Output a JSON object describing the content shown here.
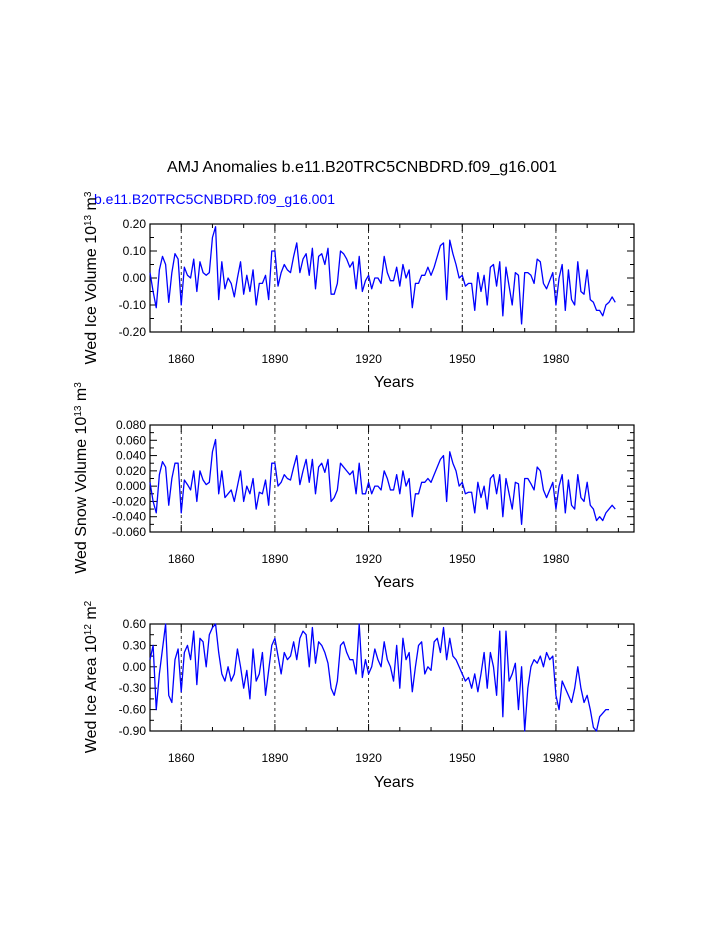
{
  "title": "AMJ Anomalies b.e11.B20TRC5CNBDRD.f09_g16.001",
  "subtitle": "b.e11.B20TRC5CNBDRD.f09_g16.001",
  "line_color": "#0000ff",
  "subtitle_color": "#0000ff",
  "chart_data": [
    {
      "type": "line",
      "xlabel": "Years",
      "ylabel": {
        "main": "Wed Ice Volume 10",
        "exp": "13",
        "unit": " m",
        "unit_exp": "3"
      },
      "xlim": [
        1850,
        2005
      ],
      "ylim": [
        -0.2,
        0.2
      ],
      "xticks": [
        1860,
        1890,
        1920,
        1950,
        1980
      ],
      "yticks": [
        -0.2,
        -0.1,
        0.0,
        0.1,
        0.2
      ],
      "yticklabels": [
        "-0.20",
        "-0.10",
        "0.00",
        "0.10",
        "0.20"
      ],
      "vlines": [
        1860,
        1890,
        1920,
        1950,
        1980
      ],
      "series": [
        {
          "name": "b.e11.B20TRC5CNBDRD.f09_g16.001",
          "x_start": 1850,
          "values": [
            0.02,
            -0.05,
            -0.11,
            0.03,
            0.08,
            0.05,
            -0.09,
            0.02,
            0.09,
            0.07,
            -0.1,
            0.04,
            0.01,
            0.0,
            0.07,
            -0.05,
            0.06,
            0.02,
            0.01,
            0.02,
            0.15,
            0.19,
            -0.08,
            0.06,
            -0.04,
            0.0,
            -0.02,
            -0.07,
            0.0,
            0.06,
            -0.06,
            0.01,
            -0.05,
            0.03,
            -0.1,
            -0.02,
            -0.02,
            0.01,
            -0.08,
            0.1,
            0.1,
            -0.03,
            0.02,
            0.05,
            0.03,
            0.02,
            0.08,
            0.13,
            0.02,
            0.07,
            0.09,
            0.01,
            0.11,
            -0.04,
            0.08,
            0.09,
            0.05,
            0.11,
            -0.06,
            -0.06,
            -0.02,
            0.1,
            0.09,
            0.07,
            0.04,
            0.06,
            -0.04,
            0.08,
            -0.05,
            -0.01,
            0.01,
            -0.04,
            0.0,
            0.0,
            -0.02,
            0.08,
            0.02,
            -0.01,
            -0.01,
            0.04,
            -0.03,
            0.05,
            0.0,
            0.03,
            -0.11,
            -0.02,
            -0.02,
            0.01,
            0.01,
            0.04,
            0.01,
            0.04,
            0.08,
            0.12,
            0.13,
            -0.08,
            0.14,
            0.09,
            0.05,
            0.0,
            0.01,
            -0.03,
            -0.02,
            -0.02,
            -0.12,
            0.02,
            -0.05,
            0.01,
            -0.1,
            0.04,
            0.05,
            -0.03,
            0.06,
            -0.14,
            0.04,
            -0.03,
            -0.1,
            0.02,
            0.01,
            -0.17,
            0.02,
            0.02,
            0.01,
            -0.02,
            0.07,
            0.06,
            -0.02,
            -0.04,
            -0.01,
            0.02,
            -0.1,
            0.0,
            0.05,
            -0.12,
            0.03,
            -0.08,
            -0.1,
            0.06,
            -0.05,
            -0.06,
            0.03,
            -0.08,
            -0.09,
            -0.12,
            -0.12,
            -0.14,
            -0.1,
            -0.09,
            -0.07,
            -0.09
          ]
        }
      ]
    },
    {
      "type": "line",
      "xlabel": "Years",
      "ylabel": {
        "main": "Wed Snow Volume 10",
        "exp": "13",
        "unit": " m",
        "unit_exp": "3"
      },
      "xlim": [
        1850,
        2005
      ],
      "ylim": [
        -0.06,
        0.08
      ],
      "xticks": [
        1860,
        1890,
        1920,
        1950,
        1980
      ],
      "yticks": [
        -0.06,
        -0.04,
        -0.02,
        0.0,
        0.02,
        0.04,
        0.06,
        0.08
      ],
      "yticklabels": [
        "-0.060",
        "-0.040",
        "-0.020",
        "0.000",
        "0.020",
        "0.040",
        "0.060",
        "0.080"
      ],
      "vlines": [
        1860,
        1890,
        1920,
        1950,
        1980
      ],
      "series": [
        {
          "name": "b.e11.B20TRC5CNBDRD.f09_g16.001",
          "x_start": 1850,
          "values": [
            0.005,
            -0.02,
            -0.035,
            0.015,
            0.032,
            0.025,
            -0.025,
            0.01,
            0.03,
            0.03,
            -0.035,
            0.008,
            0.002,
            -0.005,
            0.02,
            -0.02,
            0.02,
            0.008,
            0.002,
            0.005,
            0.045,
            0.061,
            -0.01,
            0.02,
            -0.015,
            -0.01,
            -0.005,
            -0.02,
            0.0,
            0.02,
            -0.02,
            0.0,
            -0.01,
            0.01,
            -0.03,
            -0.008,
            -0.01,
            0.008,
            -0.025,
            0.03,
            0.03,
            0.0,
            0.005,
            0.015,
            0.01,
            0.008,
            0.025,
            0.04,
            0.002,
            0.02,
            0.035,
            0.005,
            0.035,
            -0.01,
            0.025,
            0.03,
            0.018,
            0.035,
            -0.02,
            -0.015,
            -0.005,
            0.03,
            0.025,
            0.02,
            0.015,
            0.02,
            -0.01,
            0.03,
            -0.01,
            -0.01,
            0.005,
            -0.01,
            0.0,
            0.0,
            -0.005,
            0.02,
            0.01,
            -0.005,
            -0.005,
            0.015,
            -0.01,
            0.02,
            0.0,
            0.01,
            -0.04,
            -0.01,
            -0.01,
            0.005,
            0.005,
            0.01,
            0.005,
            0.015,
            0.025,
            0.035,
            0.04,
            -0.02,
            0.045,
            0.03,
            0.02,
            0.0,
            0.005,
            -0.01,
            -0.008,
            -0.008,
            -0.035,
            0.005,
            -0.015,
            0.0,
            -0.03,
            0.01,
            0.015,
            -0.01,
            0.015,
            -0.04,
            0.01,
            -0.01,
            -0.03,
            0.005,
            0.003,
            -0.05,
            0.01,
            0.01,
            0.003,
            -0.005,
            0.025,
            0.02,
            -0.005,
            -0.015,
            -0.005,
            0.005,
            -0.03,
            0.0,
            0.015,
            -0.035,
            0.008,
            -0.025,
            -0.03,
            0.015,
            -0.015,
            -0.02,
            0.005,
            -0.025,
            -0.03,
            -0.045,
            -0.04,
            -0.045,
            -0.035,
            -0.03,
            -0.025,
            -0.03
          ]
        }
      ]
    },
    {
      "type": "line",
      "xlabel": "Years",
      "ylabel": {
        "main": "Wed Ice Area 10",
        "exp": "12",
        "unit": " m",
        "unit_exp": "2"
      },
      "xlim": [
        1850,
        2005
      ],
      "ylim": [
        -0.9,
        0.6
      ],
      "xticks": [
        1860,
        1890,
        1920,
        1950,
        1980
      ],
      "yticks": [
        -0.9,
        -0.6,
        -0.3,
        0.0,
        0.3,
        0.6
      ],
      "yticklabels": [
        "-0.90",
        "-0.60",
        "-0.30",
        "0.00",
        "0.30",
        "0.60"
      ],
      "vlines": [
        1860,
        1890,
        1920,
        1950,
        1980
      ],
      "series": [
        {
          "name": "b.e11.B20TRC5CNBDRD.f09_g16.001",
          "x_start": 1850,
          "values": [
            0.1,
            0.3,
            -0.6,
            -0.1,
            0.25,
            0.6,
            -0.4,
            -0.5,
            0.1,
            0.25,
            -0.35,
            0.2,
            0.3,
            0.1,
            0.5,
            -0.25,
            0.4,
            0.35,
            0.0,
            0.45,
            0.55,
            0.6,
            0.2,
            -0.1,
            -0.2,
            0.0,
            -0.2,
            -0.1,
            0.25,
            0.0,
            -0.3,
            -0.05,
            -0.45,
            0.25,
            -0.2,
            -0.1,
            0.2,
            -0.4,
            -0.05,
            0.3,
            0.4,
            0.15,
            -0.1,
            0.2,
            0.1,
            0.15,
            0.35,
            0.1,
            0.4,
            0.5,
            0.45,
            0.0,
            0.55,
            0.05,
            0.35,
            0.3,
            0.2,
            0.05,
            -0.3,
            -0.4,
            -0.2,
            0.3,
            0.35,
            0.2,
            0.1,
            0.1,
            -0.1,
            0.6,
            -0.15,
            0.1,
            -0.1,
            0.0,
            0.25,
            0.1,
            0.0,
            0.35,
            0.1,
            0.0,
            -0.2,
            0.3,
            -0.3,
            0.4,
            0.1,
            0.2,
            -0.35,
            0.0,
            0.3,
            0.35,
            -0.1,
            0.0,
            -0.05,
            0.35,
            0.4,
            0.2,
            0.55,
            0.1,
            0.4,
            0.15,
            0.1,
            0.0,
            -0.1,
            -0.2,
            -0.15,
            -0.3,
            -0.1,
            -0.35,
            -0.1,
            0.2,
            -0.3,
            0.2,
            0.0,
            -0.4,
            0.5,
            -0.7,
            0.5,
            -0.2,
            -0.1,
            0.05,
            -0.6,
            0.0,
            -0.9,
            -0.3,
            0.0,
            0.1,
            0.05,
            0.15,
            0.0,
            0.2,
            0.1,
            0.15,
            -0.4,
            -0.6,
            -0.2,
            -0.3,
            -0.4,
            -0.5,
            -0.3,
            0.0,
            -0.3,
            -0.5,
            -0.4,
            -0.6,
            -0.85,
            -0.9,
            -0.7,
            -0.65,
            -0.6,
            -0.6
          ]
        }
      ]
    }
  ]
}
